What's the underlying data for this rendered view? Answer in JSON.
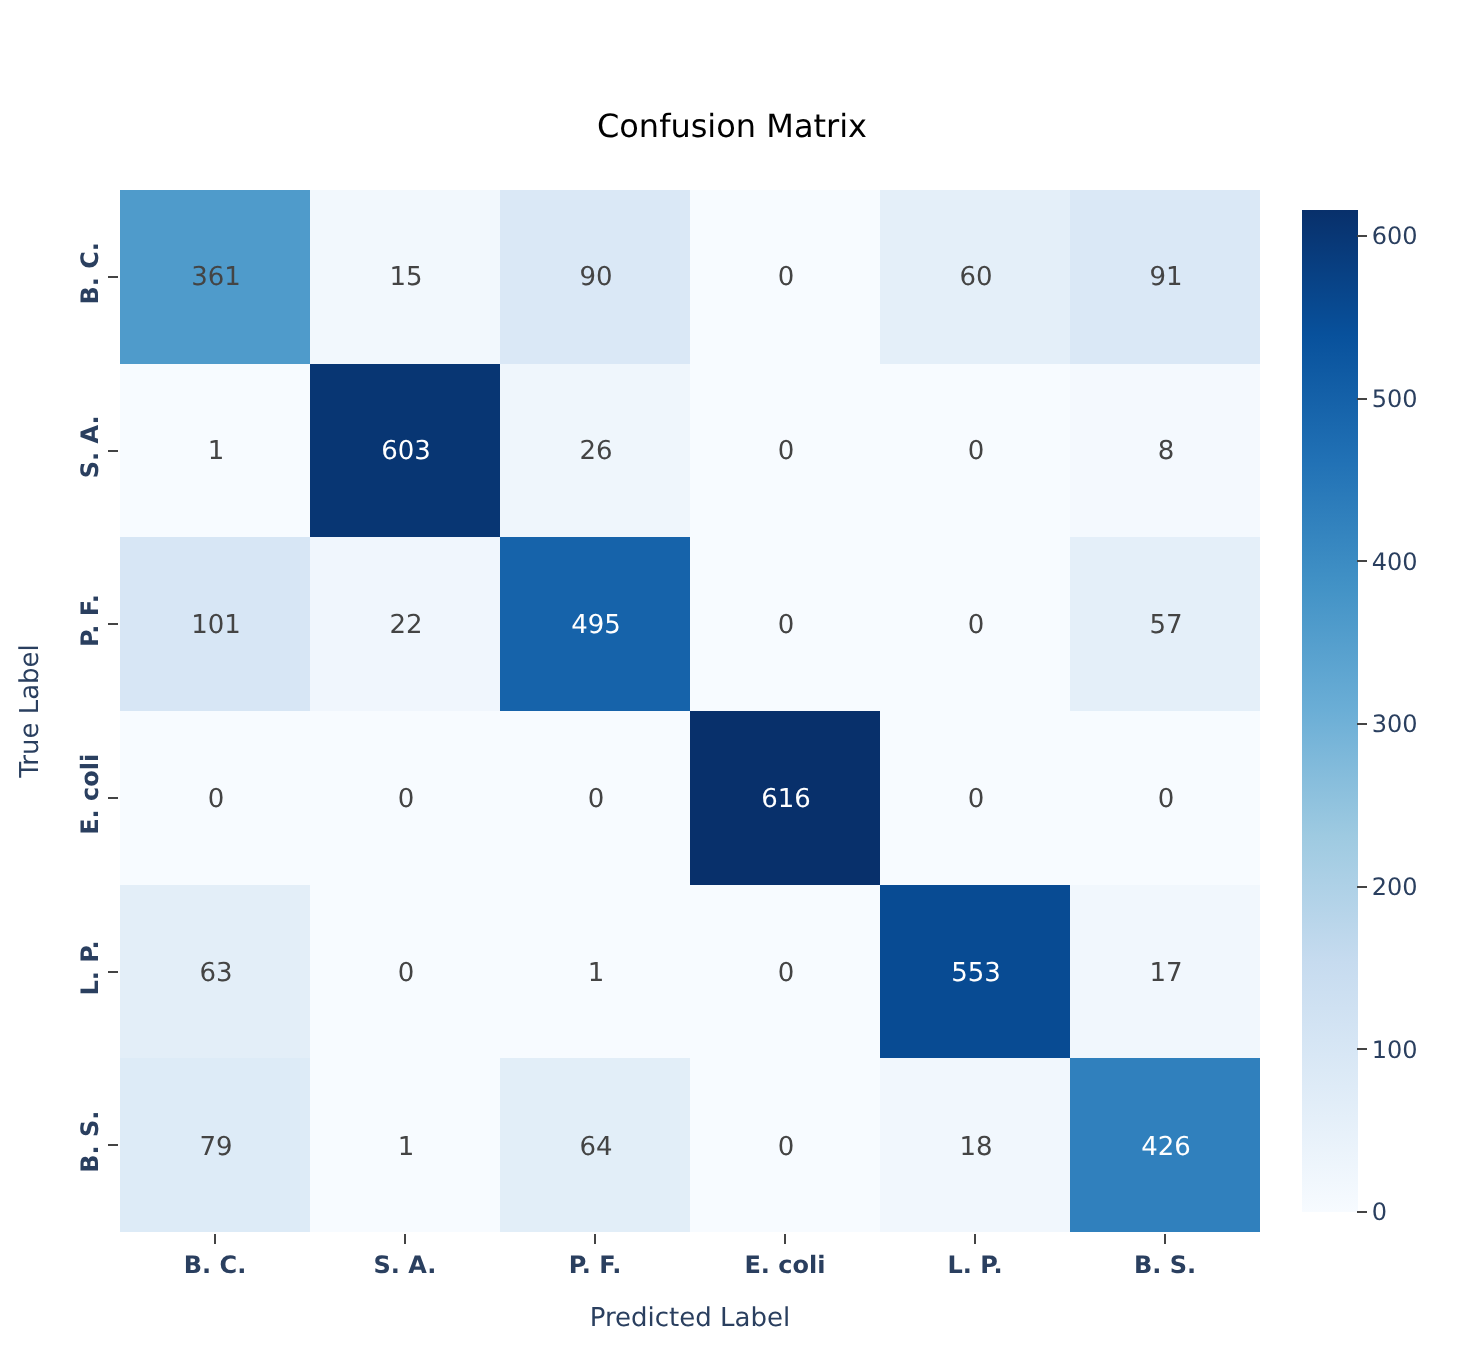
{
  "chart_data": {
    "type": "heatmap",
    "title": "Confusion Matrix",
    "xlabel": "Predicted Label",
    "ylabel": "True Label",
    "categories": [
      "B. C.",
      "S. A.",
      "P. F.",
      "E. coli",
      "L. P.",
      "B. S."
    ],
    "y_categories": [
      "B. C.",
      "S. A.",
      "P. F.",
      "E. coli",
      "L. P.",
      "B. S."
    ],
    "cells": [
      [
        361,
        15,
        90,
        0,
        60,
        91
      ],
      [
        1,
        603,
        26,
        0,
        0,
        8
      ],
      [
        101,
        22,
        495,
        0,
        0,
        57
      ],
      [
        0,
        0,
        0,
        616,
        0,
        0
      ],
      [
        63,
        0,
        1,
        0,
        553,
        17
      ],
      [
        79,
        1,
        64,
        0,
        18,
        426
      ]
    ],
    "data_labels": true,
    "clim": [
      0,
      616
    ],
    "cticks": [
      0,
      100,
      200,
      300,
      400,
      500,
      600
    ]
  }
}
